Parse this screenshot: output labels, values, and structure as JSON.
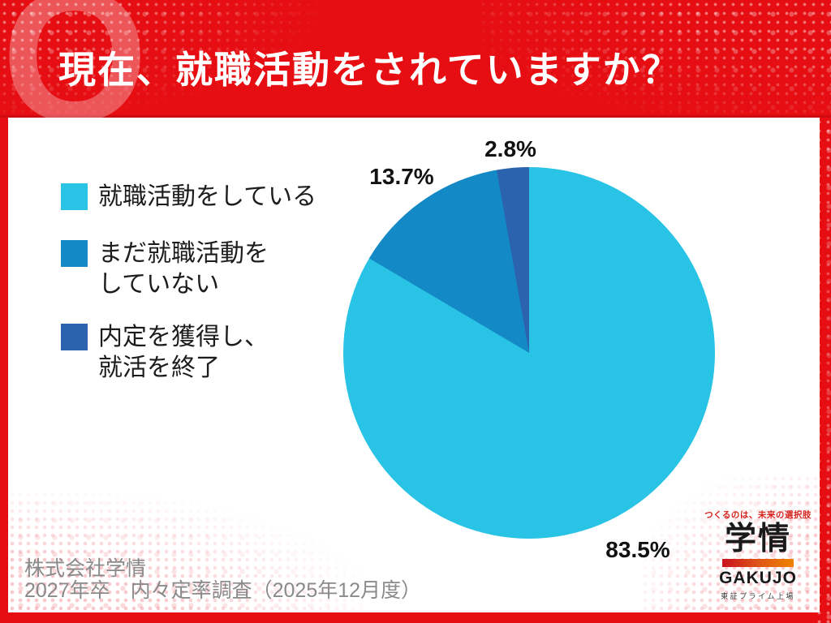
{
  "header": {
    "q_mark": "Q",
    "title": "現在、就職活動をされていますか？"
  },
  "chart_data": {
    "type": "pie",
    "title": "現在、就職活動をされていますか？",
    "start_angle_deg": 0,
    "direction": "clockwise",
    "legend_position": "left",
    "slices": [
      {
        "label": "就職活動をしている",
        "legend_lines": "就職活動をしている",
        "value": 83.5,
        "label_text": "83.5%",
        "color": "#29C3E6"
      },
      {
        "label": "まだ就職活動をしていない",
        "legend_lines": "まだ就職活動を\nしていない",
        "value": 13.7,
        "label_text": "13.7%",
        "color": "#1389C5"
      },
      {
        "label": "内定を獲得し、就活を終了",
        "legend_lines": "内定を獲得し、\n就活を終了",
        "value": 2.8,
        "label_text": "2.8%",
        "color": "#2B63AE"
      }
    ]
  },
  "footer": {
    "company": "株式会社学情",
    "survey": "2027年卒　内々定率調査（2025年12月度）"
  },
  "logo": {
    "tagline": "つくるのは、未来の選択肢",
    "name_jp": "学情",
    "name_en": "GAKUJO",
    "listing": "東証プライム上場"
  },
  "colors": {
    "frame_red": "#E60E12",
    "slice_cyan": "#29C3E6",
    "slice_blue": "#1389C5",
    "slice_dark_blue": "#2B63AE",
    "footer_gray": "#8A8A8A"
  }
}
